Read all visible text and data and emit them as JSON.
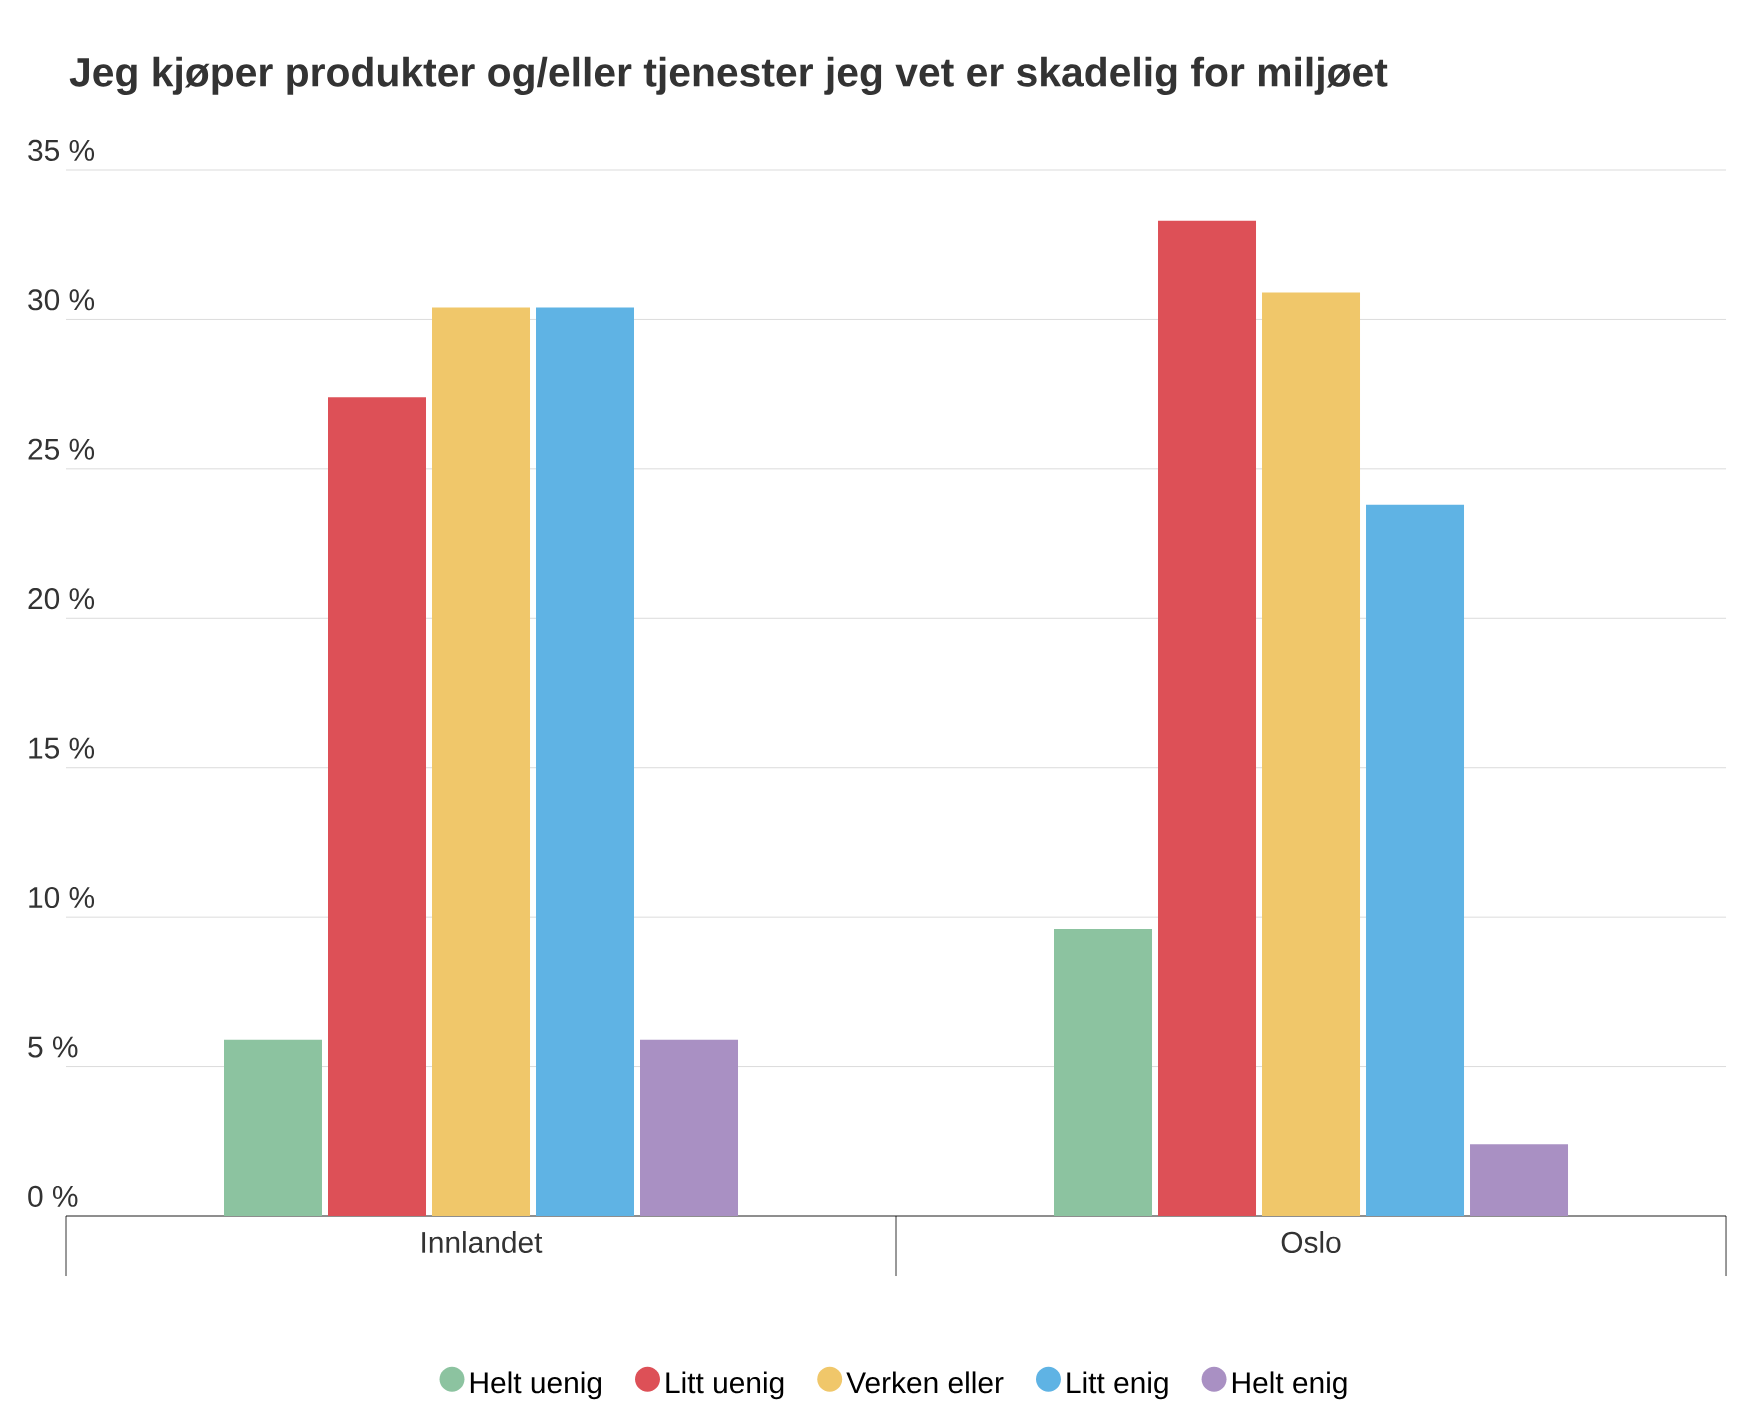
{
  "chart_data": {
    "type": "bar",
    "title": "Jeg kjøper produkter og/eller tjenester jeg vet er skadelig for miljøet",
    "categories": [
      "Innlandet",
      "Oslo"
    ],
    "series": [
      {
        "name": "Helt uenig",
        "color": "#8cc3a0",
        "values": [
          5.9,
          9.6
        ]
      },
      {
        "name": "Litt uenig",
        "color": "#dd5057",
        "values": [
          27.4,
          33.3
        ]
      },
      {
        "name": "Verken eller",
        "color": "#f0c76a",
        "values": [
          30.4,
          30.9
        ]
      },
      {
        "name": "Litt enig",
        "color": "#5fb3e4",
        "values": [
          30.4,
          23.8
        ]
      },
      {
        "name": "Helt enig",
        "color": "#a990c3",
        "values": [
          5.9,
          2.4
        ]
      }
    ],
    "ylim": [
      0,
      35
    ],
    "yticks": [
      {
        "value": 0,
        "label": "0 %"
      },
      {
        "value": 5,
        "label": "5 %"
      },
      {
        "value": 10,
        "label": "10 %"
      },
      {
        "value": 15,
        "label": "15 %"
      },
      {
        "value": 20,
        "label": "20 %"
      },
      {
        "value": 25,
        "label": "25 %"
      },
      {
        "value": 30,
        "label": "30 %"
      },
      {
        "value": 35,
        "label": "35 %"
      }
    ],
    "grid": "y",
    "legend": "bottom"
  }
}
